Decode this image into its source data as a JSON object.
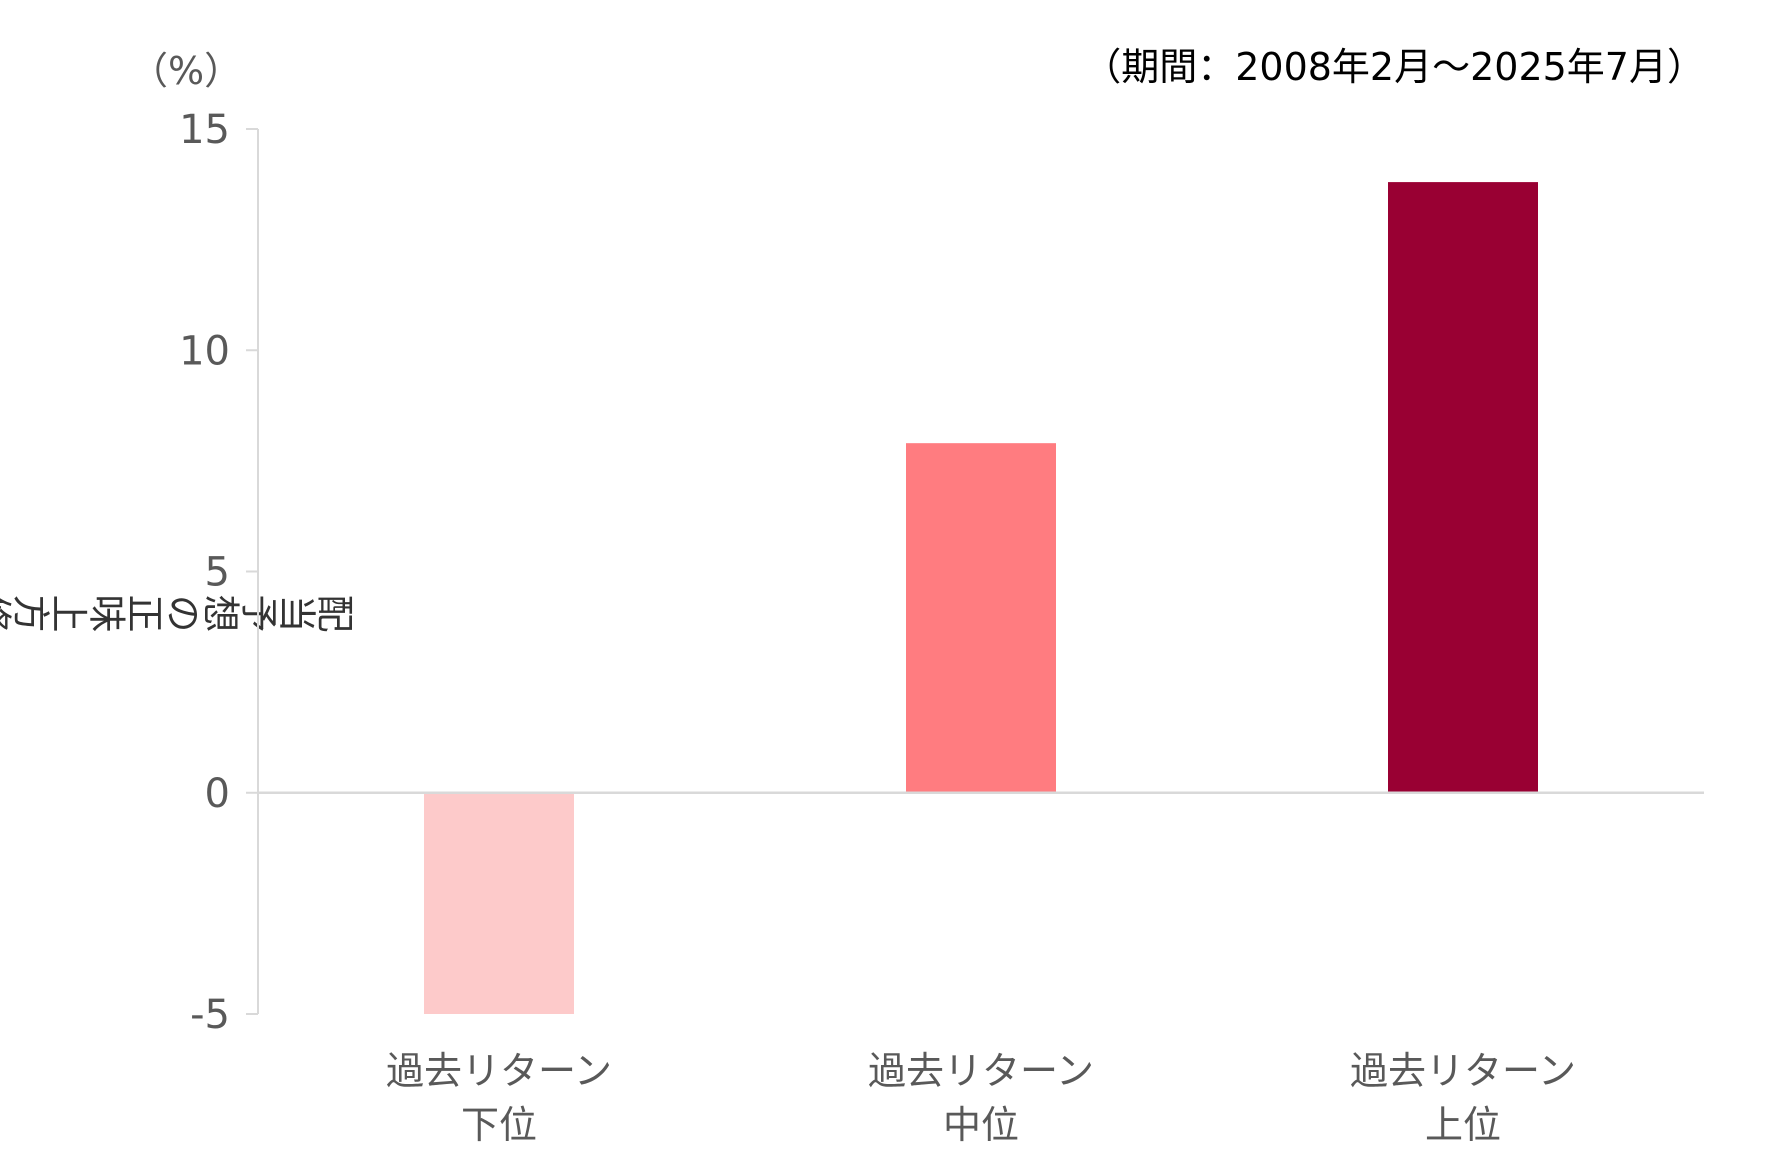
{
  "chart_data": {
    "type": "bar",
    "title": "",
    "note": "（期間：2008年2月～2025年7月）",
    "unit_label": "（%）",
    "ylabel": "配当予想の正味上方修正銘柄比率",
    "xlabel": "",
    "categories": [
      {
        "line1": "過去リターン",
        "line2": "下位"
      },
      {
        "line1": "過去リターン",
        "line2": "中位"
      },
      {
        "line1": "過去リターン",
        "line2": "上位"
      }
    ],
    "values": [
      -5.0,
      7.9,
      13.8
    ],
    "colors": [
      "#FDCACA",
      "#FF7C80",
      "#990033"
    ],
    "ylim": [
      -5,
      15
    ],
    "yticks": [
      -5,
      0,
      5,
      10,
      15
    ],
    "ytick_labels": [
      "-5",
      "0",
      "5",
      "10",
      "15"
    ],
    "grid": false,
    "legend": "none"
  }
}
